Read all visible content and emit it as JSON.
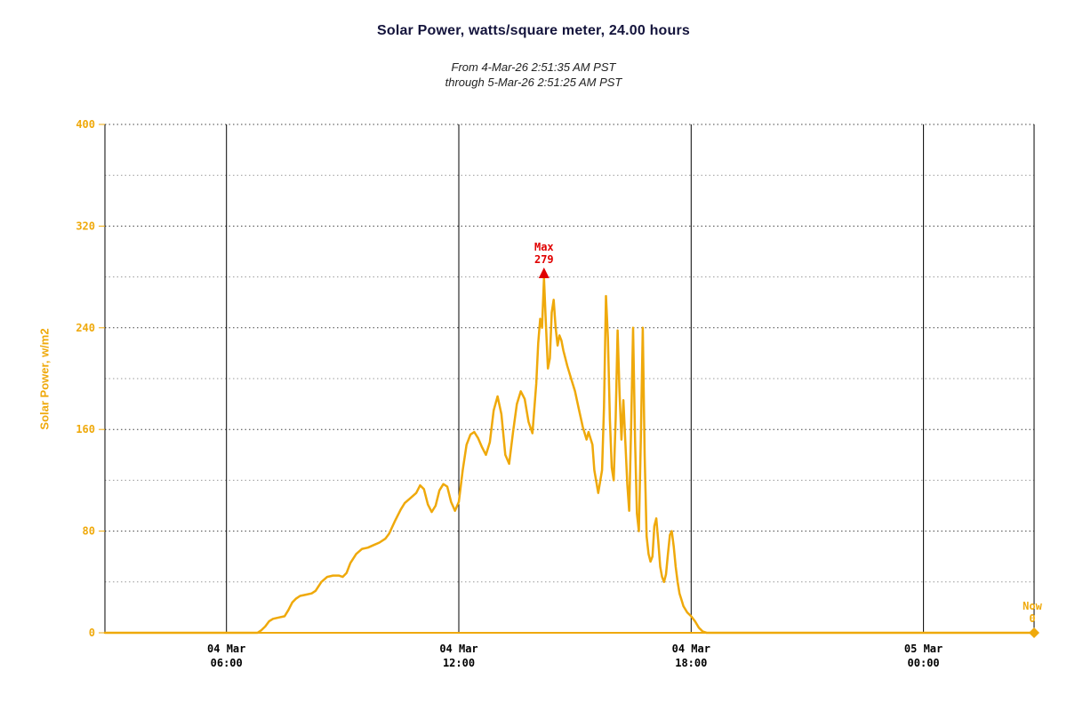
{
  "page": {
    "title": "Solar Power, watts/square meter, 24.00 hours",
    "subtitle_line1": "From 4-Mar-26 2:51:35 AM PST",
    "subtitle_line2": "through 5-Mar-26 2:51:25 AM PST"
  },
  "colors": {
    "accent": "#EFA90B",
    "title": "#14143C",
    "max_red": "#E00000",
    "grid_major": "#444444",
    "grid_minor": "#999999",
    "axis_line": "#000000"
  },
  "chart_data": {
    "type": "line",
    "title": "Solar Power, watts/square meter, 24.00 hours",
    "subtitle": "From 4-Mar-26 2:51:35 AM PST through 5-Mar-26 2:51:25 AM PST",
    "xlabel": "",
    "ylabel": "Solar Power, w/m2",
    "x_range_hours": [
      2.86,
      26.857
    ],
    "y_range": [
      0,
      400
    ],
    "yticks": [
      0,
      80,
      160,
      240,
      320,
      400
    ],
    "y_grid_interval": 40,
    "grid": "dotted horizontal every 40 units; solid vertical lines every 6 hours",
    "legend": "none",
    "xticks": [
      {
        "hour": 6,
        "line1": "04 Mar",
        "line2": "06:00"
      },
      {
        "hour": 12,
        "line1": "04 Mar",
        "line2": "12:00"
      },
      {
        "hour": 18,
        "line1": "04 Mar",
        "line2": "18:00"
      },
      {
        "hour": 24,
        "line1": "05 Mar",
        "line2": "00:00"
      }
    ],
    "series": [
      {
        "name": "Solar Power w/m2",
        "color": "#EFA90B",
        "points": [
          [
            2.86,
            0
          ],
          [
            4,
            0
          ],
          [
            5,
            0
          ],
          [
            6,
            0
          ],
          [
            6.5,
            0
          ],
          [
            6.8,
            0
          ],
          [
            6.9,
            2
          ],
          [
            7.0,
            5
          ],
          [
            7.1,
            9
          ],
          [
            7.2,
            11
          ],
          [
            7.35,
            12
          ],
          [
            7.5,
            13
          ],
          [
            7.6,
            18
          ],
          [
            7.7,
            24
          ],
          [
            7.8,
            27
          ],
          [
            7.9,
            29
          ],
          [
            8.05,
            30
          ],
          [
            8.2,
            31
          ],
          [
            8.3,
            33
          ],
          [
            8.45,
            40
          ],
          [
            8.6,
            44
          ],
          [
            8.75,
            45
          ],
          [
            8.9,
            45
          ],
          [
            9.0,
            44
          ],
          [
            9.1,
            47
          ],
          [
            9.2,
            55
          ],
          [
            9.35,
            62
          ],
          [
            9.5,
            66
          ],
          [
            9.65,
            67
          ],
          [
            9.8,
            69
          ],
          [
            9.95,
            71
          ],
          [
            10.1,
            74
          ],
          [
            10.2,
            78
          ],
          [
            10.35,
            88
          ],
          [
            10.5,
            97
          ],
          [
            10.6,
            102
          ],
          [
            10.75,
            106
          ],
          [
            10.9,
            110
          ],
          [
            11.0,
            116
          ],
          [
            11.1,
            113
          ],
          [
            11.2,
            101
          ],
          [
            11.3,
            95
          ],
          [
            11.4,
            100
          ],
          [
            11.5,
            112
          ],
          [
            11.6,
            117
          ],
          [
            11.7,
            115
          ],
          [
            11.8,
            103
          ],
          [
            11.9,
            96
          ],
          [
            12.0,
            103
          ],
          [
            12.1,
            128
          ],
          [
            12.2,
            148
          ],
          [
            12.3,
            156
          ],
          [
            12.4,
            158
          ],
          [
            12.5,
            153
          ],
          [
            12.6,
            146
          ],
          [
            12.7,
            140
          ],
          [
            12.8,
            150
          ],
          [
            12.9,
            175
          ],
          [
            13.0,
            186
          ],
          [
            13.1,
            172
          ],
          [
            13.2,
            140
          ],
          [
            13.3,
            133
          ],
          [
            13.4,
            158
          ],
          [
            13.5,
            180
          ],
          [
            13.6,
            190
          ],
          [
            13.7,
            184
          ],
          [
            13.8,
            166
          ],
          [
            13.9,
            157
          ],
          [
            14.0,
            196
          ],
          [
            14.05,
            228
          ],
          [
            14.1,
            247
          ],
          [
            14.15,
            240
          ],
          [
            14.2,
            279
          ],
          [
            14.25,
            242
          ],
          [
            14.3,
            208
          ],
          [
            14.35,
            216
          ],
          [
            14.4,
            252
          ],
          [
            14.45,
            262
          ],
          [
            14.5,
            240
          ],
          [
            14.55,
            226
          ],
          [
            14.6,
            234
          ],
          [
            14.65,
            230
          ],
          [
            14.7,
            222
          ],
          [
            14.8,
            210
          ],
          [
            14.9,
            200
          ],
          [
            15.0,
            190
          ],
          [
            15.1,
            176
          ],
          [
            15.2,
            162
          ],
          [
            15.3,
            152
          ],
          [
            15.35,
            158
          ],
          [
            15.45,
            148
          ],
          [
            15.5,
            128
          ],
          [
            15.6,
            110
          ],
          [
            15.7,
            128
          ],
          [
            15.75,
            178
          ],
          [
            15.8,
            265
          ],
          [
            15.85,
            232
          ],
          [
            15.9,
            168
          ],
          [
            15.95,
            130
          ],
          [
            16.0,
            120
          ],
          [
            16.05,
            168
          ],
          [
            16.1,
            238
          ],
          [
            16.15,
            190
          ],
          [
            16.2,
            152
          ],
          [
            16.25,
            183
          ],
          [
            16.3,
            150
          ],
          [
            16.35,
            117
          ],
          [
            16.4,
            96
          ],
          [
            16.45,
            162
          ],
          [
            16.5,
            240
          ],
          [
            16.55,
            152
          ],
          [
            16.6,
            94
          ],
          [
            16.65,
            80
          ],
          [
            16.7,
            152
          ],
          [
            16.75,
            240
          ],
          [
            16.8,
            140
          ],
          [
            16.85,
            76
          ],
          [
            16.9,
            62
          ],
          [
            16.95,
            56
          ],
          [
            17.0,
            60
          ],
          [
            17.05,
            84
          ],
          [
            17.1,
            90
          ],
          [
            17.15,
            72
          ],
          [
            17.2,
            52
          ],
          [
            17.25,
            44
          ],
          [
            17.3,
            40
          ],
          [
            17.35,
            46
          ],
          [
            17.4,
            62
          ],
          [
            17.45,
            77
          ],
          [
            17.5,
            80
          ],
          [
            17.55,
            68
          ],
          [
            17.6,
            52
          ],
          [
            17.65,
            40
          ],
          [
            17.7,
            31
          ],
          [
            17.75,
            26
          ],
          [
            17.8,
            21
          ],
          [
            17.9,
            16
          ],
          [
            18.0,
            13
          ],
          [
            18.1,
            9
          ],
          [
            18.2,
            4
          ],
          [
            18.3,
            1
          ],
          [
            18.4,
            0
          ],
          [
            19,
            0
          ],
          [
            20,
            0
          ],
          [
            21,
            0
          ],
          [
            22,
            0
          ],
          [
            23,
            0
          ],
          [
            24,
            0
          ],
          [
            25,
            0
          ],
          [
            26,
            0
          ],
          [
            26.857,
            0
          ]
        ]
      }
    ],
    "annotations": {
      "max": {
        "label": "Max",
        "value": 279,
        "hour": 14.2
      },
      "now": {
        "label": "Now",
        "value": 0,
        "hour": 26.857
      }
    }
  }
}
